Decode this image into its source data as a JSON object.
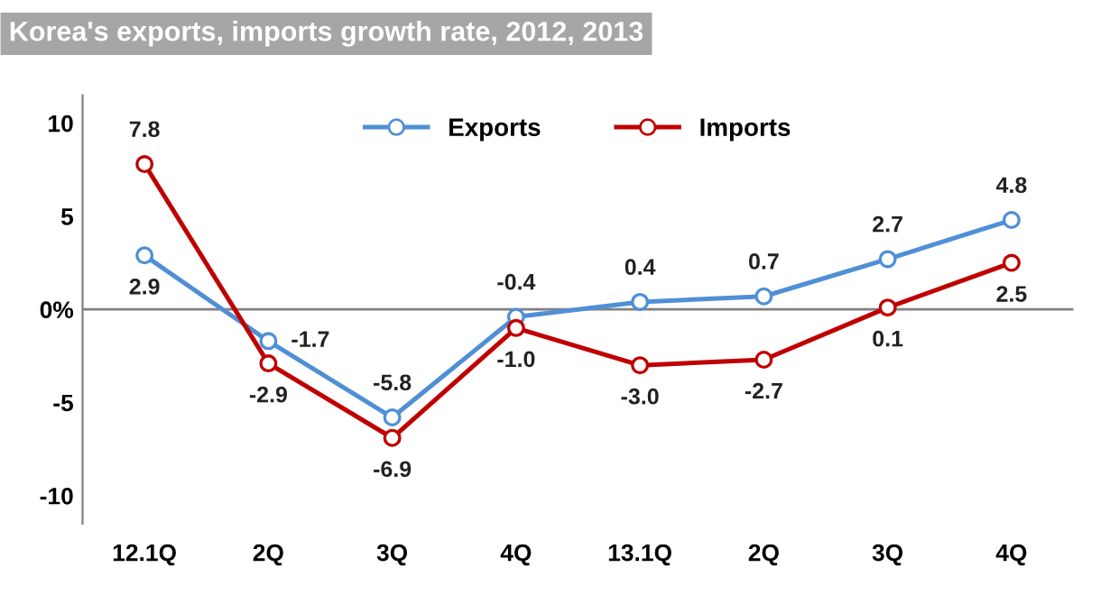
{
  "chart_data": {
    "type": "line",
    "title": "Korea's exports, imports growth rate, 2012, 2013",
    "categories": [
      "12.1Q",
      "2Q",
      "3Q",
      "4Q",
      "13.1Q",
      "2Q",
      "3Q",
      "4Q"
    ],
    "series": [
      {
        "name": "Exports",
        "color": "#4f8fd6",
        "values": [
          2.9,
          -1.7,
          -5.8,
          -0.4,
          0.4,
          0.7,
          2.7,
          4.8
        ],
        "value_labels": [
          "2.9",
          "-1.7",
          "-5.8",
          "-0.4",
          "0.4",
          "0.7",
          "2.7",
          "4.8"
        ]
      },
      {
        "name": "Imports",
        "color": "#c00000",
        "values": [
          7.8,
          -2.9,
          -6.9,
          -1.0,
          -3.0,
          -2.7,
          0.1,
          2.5
        ],
        "value_labels": [
          "7.8",
          "-2.9",
          "-6.9",
          "-1.0",
          "-3.0",
          "-2.7",
          "0.1",
          "2.5"
        ]
      }
    ],
    "ylim": [
      -11.5,
      11.5
    ],
    "yticks": [
      10,
      5,
      {
        "value": 0,
        "label": "0%"
      },
      -5,
      -10
    ],
    "ref_lines": [
      {
        "axis": "y",
        "value": 0,
        "color": "#808080"
      }
    ],
    "grid": false,
    "legend": "top",
    "marker": "circle",
    "line_style": "solid"
  }
}
